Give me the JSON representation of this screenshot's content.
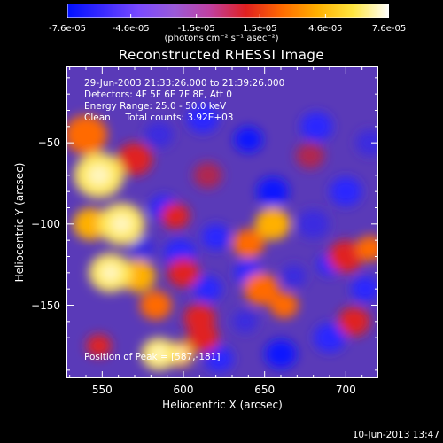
{
  "colorbar": {
    "ticks": [
      "-7.6e-05",
      "-4.6e-05",
      "-1.5e-05",
      "1.5e-05",
      "4.6e-05",
      "7.6e-05"
    ],
    "tick_values": [
      -7.6e-05,
      -4.6e-05,
      -1.5e-05,
      1.5e-05,
      4.6e-05,
      7.6e-05
    ],
    "range": [
      -7.6e-05,
      7.6e-05
    ],
    "units": "(photons cm⁻² s⁻¹ asec⁻²)",
    "colors": [
      "#0010ff",
      "#3a2aff",
      "#7a4aff",
      "#9a5ad8",
      "#c040a0",
      "#e02020",
      "#ff6a00",
      "#ffb000",
      "#ffe640",
      "#ffffff"
    ]
  },
  "header": {
    "title": "Reconstructed RHESSI Image"
  },
  "info": {
    "line1": "29-Jun-2003 21:33:26.000 to 21:39:26.000",
    "line2": "Detectors: 4F 5F 6F 7F 8F, Att 0",
    "line3": "Energy Range: 25.0 - 50.0 keV",
    "line4": "Clean     Total counts: 3.92E+03",
    "peak": "Position of Peak = [587,-181]"
  },
  "footer": {
    "date": "10-Jun-2013 13:47"
  },
  "chart_data": {
    "type": "heatmap",
    "title": "Reconstructed RHESSI Image",
    "xlabel": "Heliocentric X (arcsec)",
    "ylabel": "Heliocentric Y (arcsec)",
    "xlim": [
      528,
      720
    ],
    "ylim": [
      -195,
      -3
    ],
    "xticks": [
      550,
      600,
      650,
      700
    ],
    "xtick_labels": [
      "550",
      "600",
      "650",
      "700"
    ],
    "yticks": [
      -50,
      -100,
      -150
    ],
    "ytick_labels": [
      "−50",
      "−100",
      "−150"
    ],
    "peak_position": [
      587,
      -181
    ],
    "grid": false,
    "blobs": [
      {
        "x": 548,
        "y": -70,
        "v": 0.95,
        "s": 14
      },
      {
        "x": 540,
        "y": -45,
        "v": 0.7,
        "s": 12
      },
      {
        "x": 562,
        "y": -100,
        "v": 0.9,
        "s": 13
      },
      {
        "x": 555,
        "y": -130,
        "v": 1.0,
        "s": 12
      },
      {
        "x": 572,
        "y": -132,
        "v": 0.8,
        "s": 10
      },
      {
        "x": 585,
        "y": -180,
        "v": 1.0,
        "s": 10
      },
      {
        "x": 598,
        "y": -180,
        "v": 0.85,
        "s": 8
      },
      {
        "x": 610,
        "y": -158,
        "v": 0.55,
        "s": 9
      },
      {
        "x": 570,
        "y": -60,
        "v": 0.55,
        "s": 10
      },
      {
        "x": 543,
        "y": -100,
        "v": 0.75,
        "s": 10
      },
      {
        "x": 600,
        "y": -130,
        "v": 0.55,
        "s": 9
      },
      {
        "x": 655,
        "y": -100,
        "v": 0.75,
        "s": 10
      },
      {
        "x": 640,
        "y": -112,
        "v": 0.6,
        "s": 9
      },
      {
        "x": 648,
        "y": -140,
        "v": 0.65,
        "s": 10
      },
      {
        "x": 662,
        "y": -150,
        "v": 0.7,
        "s": 8
      },
      {
        "x": 700,
        "y": -120,
        "v": 0.55,
        "s": 10
      },
      {
        "x": 715,
        "y": -115,
        "v": 0.65,
        "s": 8
      },
      {
        "x": 705,
        "y": -160,
        "v": 0.45,
        "s": 9
      },
      {
        "x": 595,
        "y": -95,
        "v": 0.5,
        "s": 8
      },
      {
        "x": 615,
        "y": -70,
        "v": 0.35,
        "s": 8
      },
      {
        "x": 583,
        "y": -150,
        "v": 0.7,
        "s": 9
      },
      {
        "x": 612,
        "y": -170,
        "v": 0.55,
        "s": 9
      },
      {
        "x": 678,
        "y": -58,
        "v": 0.35,
        "s": 8
      },
      {
        "x": 548,
        "y": -175,
        "v": 0.45,
        "s": 7
      },
      {
        "x": 655,
        "y": -80,
        "v": -0.75,
        "s": 9
      },
      {
        "x": 640,
        "y": -48,
        "v": -0.75,
        "s": 8
      },
      {
        "x": 612,
        "y": -35,
        "v": -0.55,
        "s": 9
      },
      {
        "x": 682,
        "y": -40,
        "v": -0.65,
        "s": 9
      },
      {
        "x": 620,
        "y": -108,
        "v": -0.6,
        "s": 8
      },
      {
        "x": 598,
        "y": -118,
        "v": -0.55,
        "s": 9
      },
      {
        "x": 588,
        "y": -90,
        "v": -0.55,
        "s": 8
      },
      {
        "x": 615,
        "y": -140,
        "v": -0.6,
        "s": 8
      },
      {
        "x": 640,
        "y": -130,
        "v": -0.55,
        "s": 8
      },
      {
        "x": 660,
        "y": -180,
        "v": -0.7,
        "s": 9
      },
      {
        "x": 690,
        "y": -170,
        "v": -0.6,
        "s": 9
      },
      {
        "x": 622,
        "y": -183,
        "v": -0.55,
        "s": 8
      },
      {
        "x": 680,
        "y": -100,
        "v": -0.5,
        "s": 9
      },
      {
        "x": 700,
        "y": -80,
        "v": -0.55,
        "s": 9
      },
      {
        "x": 715,
        "y": -50,
        "v": -0.45,
        "s": 8
      },
      {
        "x": 712,
        "y": -140,
        "v": -0.55,
        "s": 8
      },
      {
        "x": 585,
        "y": -45,
        "v": -0.4,
        "s": 8
      },
      {
        "x": 575,
        "y": -115,
        "v": -0.35,
        "s": 7
      },
      {
        "x": 668,
        "y": -132,
        "v": -0.45,
        "s": 7
      },
      {
        "x": 638,
        "y": -160,
        "v": -0.5,
        "s": 7
      },
      {
        "x": 690,
        "y": -125,
        "v": -0.55,
        "s": 7
      }
    ]
  }
}
